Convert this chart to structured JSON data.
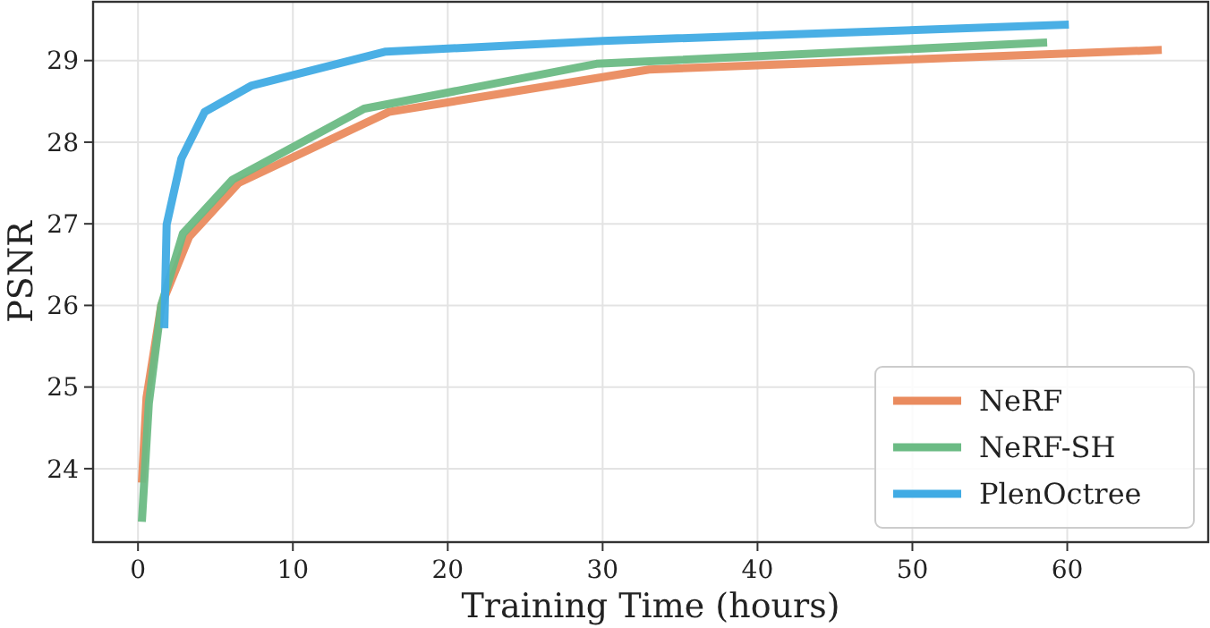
{
  "chart_data": {
    "type": "line",
    "xlabel": "Training Time (hours)",
    "ylabel": "PSNR",
    "xlim": [
      -2.9,
      69.1
    ],
    "ylim": [
      23.1,
      29.72
    ],
    "xticks": [
      0,
      10,
      20,
      30,
      40,
      50,
      60
    ],
    "yticks": [
      24,
      25,
      26,
      27,
      28,
      29
    ],
    "grid": true,
    "legend": "bottom right",
    "line_style": "solid",
    "marker": "none",
    "series": [
      {
        "name": "NeRF",
        "color": "#ea8b5e",
        "x": [
          0.25,
          0.55,
          1.5,
          3.3,
          6.5,
          16.2,
          33,
          66.1
        ],
        "values": [
          23.83,
          24.87,
          26.0,
          26.84,
          27.5,
          28.37,
          28.89,
          29.13
        ]
      },
      {
        "name": "NeRF-SH",
        "color": "#6bbb84",
        "x": [
          0.25,
          0.7,
          1.5,
          2.9,
          6.1,
          14.6,
          29.6,
          58.7
        ],
        "values": [
          23.35,
          24.8,
          26.0,
          26.88,
          27.54,
          28.41,
          28.96,
          29.22
        ]
      },
      {
        "name": "PlenOctree",
        "color": "#40abe4",
        "x": [
          1.7,
          1.85,
          2.8,
          4.3,
          7.3,
          16,
          30,
          60.1
        ],
        "values": [
          25.72,
          26.99,
          27.8,
          28.37,
          28.69,
          29.11,
          29.24,
          29.44
        ]
      }
    ]
  }
}
